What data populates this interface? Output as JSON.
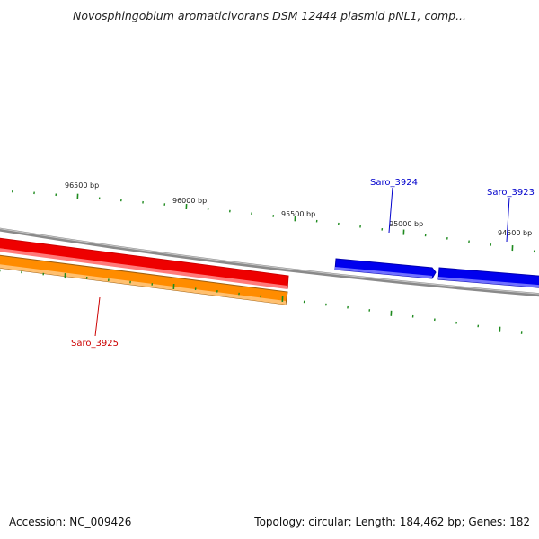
{
  "title": "Novosphingobium aromaticivorans DSM 12444 plasmid pNL1, comp...",
  "footer": {
    "accession": "Accession: NC_009426",
    "summary": "Topology: circular; Length: 184,462 bp; Genes: 182"
  },
  "colors": {
    "backbone": "#8a8a8a",
    "tick": "#1e8a1e",
    "gene_forward": "#0000ee",
    "gene_reverse_red": "#ee0000",
    "gene_reverse_orange": "#ff8c00"
  },
  "ticks": [
    {
      "label": "96500 bp",
      "bp": 96500
    },
    {
      "label": "96000 bp",
      "bp": 96000
    },
    {
      "label": "95500 bp",
      "bp": 95500
    },
    {
      "label": "95000 bp",
      "bp": 95000
    },
    {
      "label": "94500 bp",
      "bp": 94500
    }
  ],
  "genes": [
    {
      "name": "Saro_3924",
      "strand": "+",
      "color": "blue"
    },
    {
      "name": "Saro_3923",
      "strand": "+",
      "color": "blue"
    },
    {
      "name": "Saro_3925",
      "strand": "-",
      "color": "red"
    }
  ]
}
